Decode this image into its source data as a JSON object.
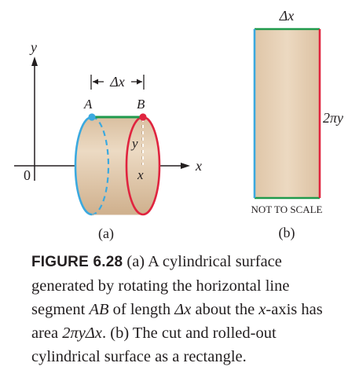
{
  "figure": {
    "panel_a": {
      "axis_y_label": "y",
      "axis_x_label": "x",
      "origin_label": "0",
      "dimension_label": "Δx",
      "point_a_label": "A",
      "point_b_label": "B",
      "radius_label": "y",
      "position_label": "x",
      "sublabel": "(a)"
    },
    "panel_b": {
      "width_label": "Δx",
      "height_label": "2πy",
      "note": "NOT TO SCALE",
      "sublabel": "(b)"
    },
    "colors": {
      "surface_fill": "#e6cfb3",
      "left_edge": "#3ba9df",
      "right_edge": "#e0243f",
      "top_edge": "#1f9a4c",
      "ink": "#231f20"
    }
  },
  "caption": {
    "label": "FIGURE 6.28",
    "segments": [
      {
        "text": "  (a) A cylindrical surface generated by rotating the horizontal line segment ",
        "style": "normal"
      },
      {
        "text": "AB",
        "style": "math"
      },
      {
        "text": " of length ",
        "style": "normal"
      },
      {
        "text": "Δx",
        "style": "math"
      },
      {
        "text": " about the ",
        "style": "normal"
      },
      {
        "text": "x",
        "style": "math"
      },
      {
        "text": "-axis has area ",
        "style": "normal"
      },
      {
        "text": "2πyΔx",
        "style": "math"
      },
      {
        "text": ". (b) The cut and rolled-out cylindrical surface as a rectangle.",
        "style": "normal"
      }
    ]
  }
}
